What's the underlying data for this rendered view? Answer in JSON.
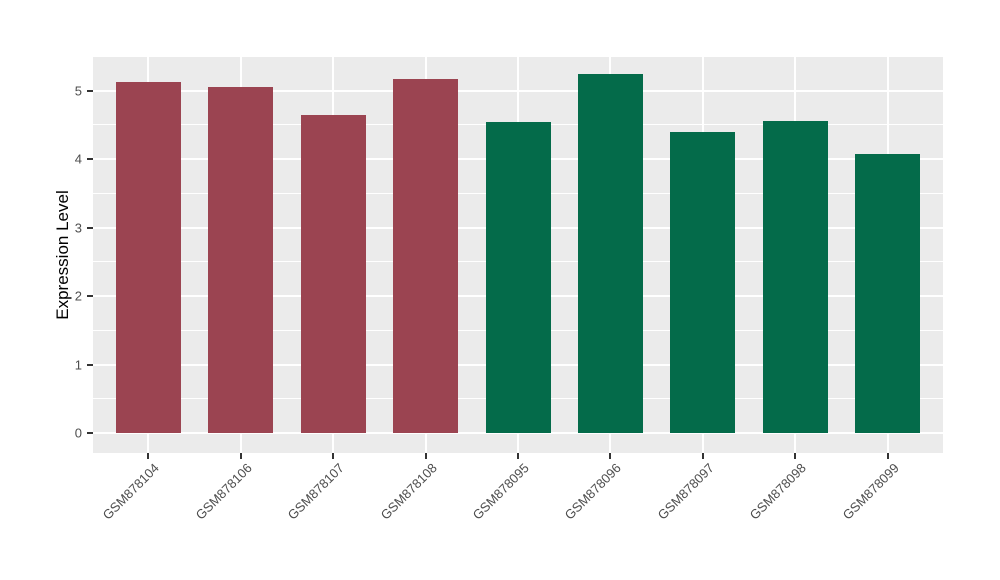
{
  "chart_data": {
    "type": "bar",
    "title": "",
    "xlabel": "",
    "ylabel": "Expression Level",
    "categories": [
      "GSM878104",
      "GSM878106",
      "GSM878107",
      "GSM878108",
      "GSM878095",
      "GSM878096",
      "GSM878097",
      "GSM878098",
      "GSM878099"
    ],
    "values": [
      5.12,
      5.06,
      4.64,
      5.17,
      4.55,
      5.24,
      4.39,
      4.56,
      4.08
    ],
    "bar_colors": [
      "#9B4451",
      "#9B4451",
      "#9B4451",
      "#9B4451",
      "#046B4A",
      "#046B4A",
      "#046B4A",
      "#046B4A",
      "#046B4A"
    ],
    "group_colors": {
      "left_group": "#9B4451",
      "right_group": "#046B4A"
    },
    "yticks": [
      0,
      1,
      2,
      3,
      4,
      5
    ],
    "minor_yticks": [
      0.5,
      1.5,
      2.5,
      3.5,
      4.5
    ],
    "ylim": [
      0,
      5.5
    ],
    "bar_width_fraction": 0.7,
    "grid": true,
    "legend": "none",
    "panel_background": "#EBEBEB",
    "gridline_color": "#FFFFFF",
    "axis_text_color": "#4D4D4D",
    "tick_color": "#333333"
  }
}
